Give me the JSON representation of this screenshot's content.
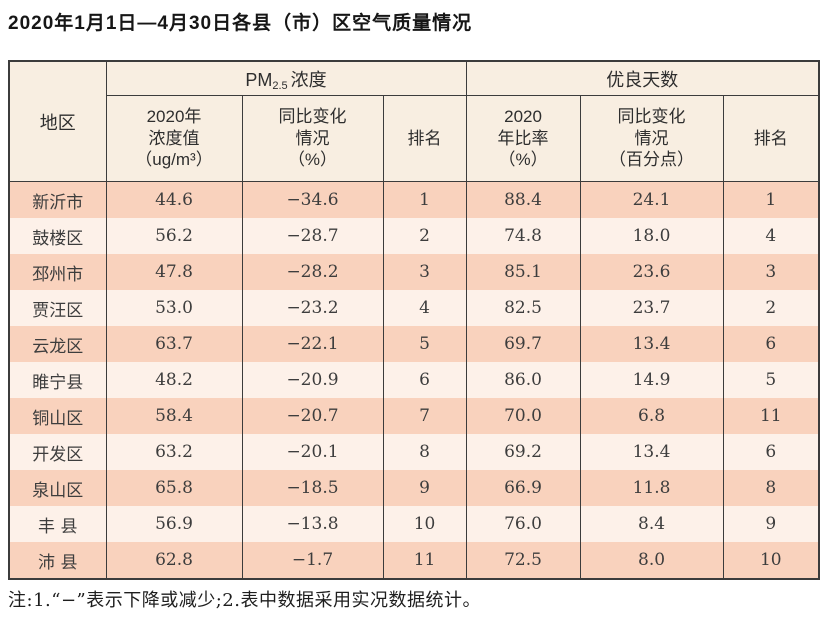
{
  "title": "2020年1月1日—4月30日各县（市）区空气质量情况",
  "table": {
    "region_header": "地区",
    "pm25_group": {
      "prefix": "PM",
      "sub": "2.5",
      "suffix": "浓度"
    },
    "good_days_group": "优良天数",
    "subheaders": {
      "pm25_value": "2020年\n浓度值\n（ug/m³）",
      "pm25_change": "同比变化\n情况\n（%）",
      "pm25_rank": "排名",
      "good_rate": "2020\n年比率\n（%）",
      "good_change": "同比变化\n情况\n（百分点）",
      "good_rank": "排名"
    },
    "cell_names": [
      "region-cell",
      "pm25-value-cell",
      "pm25-change-cell",
      "pm25-rank-cell",
      "good-rate-cell",
      "good-change-cell",
      "good-rank-cell"
    ],
    "rows": [
      [
        "新沂市",
        "44.6",
        "−34.6",
        "1",
        "88.4",
        "24.1",
        "1"
      ],
      [
        "鼓楼区",
        "56.2",
        "−28.7",
        "2",
        "74.8",
        "18.0",
        "4"
      ],
      [
        "邳州市",
        "47.8",
        "−28.2",
        "3",
        "85.1",
        "23.6",
        "3"
      ],
      [
        "贾汪区",
        "53.0",
        "−23.2",
        "4",
        "82.5",
        "23.7",
        "2"
      ],
      [
        "云龙区",
        "63.7",
        "−22.1",
        "5",
        "69.7",
        "13.4",
        "6"
      ],
      [
        "睢宁县",
        "48.2",
        "−20.9",
        "6",
        "86.0",
        "14.9",
        "5"
      ],
      [
        "铜山区",
        "58.4",
        "−20.7",
        "7",
        "70.0",
        "6.8",
        "11"
      ],
      [
        "开发区",
        "63.2",
        "−20.1",
        "8",
        "69.2",
        "13.4",
        "6"
      ],
      [
        "泉山区",
        "65.8",
        "−18.5",
        "9",
        "66.9",
        "11.8",
        "8"
      ],
      [
        "丰 县",
        "56.9",
        "−13.8",
        "10",
        "76.0",
        "8.4",
        "9"
      ],
      [
        "沛 县",
        "62.8",
        "−1.7",
        "11",
        "72.5",
        "8.0",
        "10"
      ]
    ]
  },
  "note": "注:1.“−”表示下降或减少;2.表中数据采用实况数据统计。",
  "colors": {
    "odd_row_bg": "#f9d2bd",
    "even_row_bg": "#fdf1e9",
    "header_bg": "#f8eee1",
    "border": "#3c3c3c"
  }
}
